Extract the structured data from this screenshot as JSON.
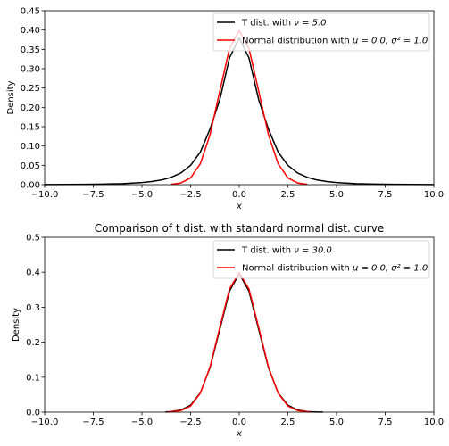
{
  "chart_data": [
    {
      "type": "line",
      "title": "",
      "xlabel": "x",
      "ylabel": "Density",
      "xlim": [
        -10,
        10
      ],
      "ylim": [
        0,
        0.45
      ],
      "x_ticks": [
        "−10.0",
        "−7.5",
        "−5.0",
        "−2.5",
        "0.0",
        "2.5",
        "5.0",
        "7.5",
        "10.0"
      ],
      "y_ticks": [
        "0.00",
        "0.05",
        "0.10",
        "0.15",
        "0.20",
        "0.25",
        "0.30",
        "0.35",
        "0.40",
        "0.45"
      ],
      "legend_position": "top-right",
      "legend": [
        {
          "prefix": "T dist. with ",
          "math": "ν = 5.0",
          "color": "#000000"
        },
        {
          "prefix": "Normal distribution with ",
          "math": "μ = 0.0, σ² = 1.0",
          "color": "#ff0000"
        }
      ],
      "series": [
        {
          "color": "#000000",
          "x": [
            -10,
            -9,
            -8,
            -7,
            -6,
            -5,
            -4.5,
            -4,
            -3.5,
            -3,
            -2.5,
            -2,
            -1.5,
            -1,
            -0.5,
            0,
            0.5,
            1,
            1.5,
            2,
            2.5,
            3,
            3.5,
            4,
            4.5,
            5,
            6,
            7,
            8,
            9,
            10
          ],
          "y": [
            0.0004,
            0.0006,
            0.0009,
            0.0015,
            0.0027,
            0.0054,
            0.008,
            0.012,
            0.0188,
            0.0302,
            0.0497,
            0.0844,
            0.144,
            0.2197,
            0.3279,
            0.3796,
            0.3279,
            0.2197,
            0.144,
            0.0844,
            0.0497,
            0.0302,
            0.0188,
            0.012,
            0.008,
            0.0054,
            0.0027,
            0.0015,
            0.0009,
            0.0006,
            0.0004
          ]
        },
        {
          "color": "#ff0000",
          "x": [
            -3.5,
            -3,
            -2.5,
            -2,
            -1.5,
            -1,
            -0.5,
            0,
            0.5,
            1,
            1.5,
            2,
            2.5,
            3,
            3.5
          ],
          "y": [
            0.0009,
            0.0044,
            0.0175,
            0.054,
            0.1295,
            0.242,
            0.3521,
            0.3989,
            0.3521,
            0.242,
            0.1295,
            0.054,
            0.0175,
            0.0044,
            0.0009
          ]
        }
      ]
    },
    {
      "type": "line",
      "title": "Comparison of t dist. with standard normal dist. curve",
      "xlabel": "x",
      "ylabel": "Density",
      "xlim": [
        -10,
        10
      ],
      "ylim": [
        0,
        0.5
      ],
      "x_ticks": [
        "−10.0",
        "−7.5",
        "−5.0",
        "−2.5",
        "0.0",
        "2.5",
        "5.0",
        "7.5",
        "10.0"
      ],
      "y_ticks": [
        "0.0",
        "0.1",
        "0.2",
        "0.3",
        "0.4",
        "0.5"
      ],
      "legend_position": "top-right",
      "legend": [
        {
          "prefix": "T dist. with ",
          "math": "ν = 30.0",
          "color": "#000000"
        },
        {
          "prefix": "Normal distribution with ",
          "math": "μ = 0.0, σ² = 1.0",
          "color": "#ff0000"
        }
      ],
      "series": [
        {
          "color": "#000000",
          "x": [
            -3.8,
            -3.5,
            -3,
            -2.5,
            -2,
            -1.5,
            -1,
            -0.5,
            0,
            0.5,
            1,
            1.5,
            2,
            2.5,
            3,
            3.5,
            4,
            4.3
          ],
          "y": [
            0.0008,
            0.0016,
            0.0061,
            0.0199,
            0.0549,
            0.1275,
            0.236,
            0.3459,
            0.3956,
            0.3459,
            0.236,
            0.1275,
            0.0549,
            0.0199,
            0.0061,
            0.0016,
            0.0004,
            0.0002
          ]
        },
        {
          "color": "#ff0000",
          "x": [
            -3.7,
            -3.5,
            -3,
            -2.5,
            -2,
            -1.5,
            -1,
            -0.5,
            0,
            0.5,
            1,
            1.5,
            2,
            2.5,
            3,
            3.5,
            3.7
          ],
          "y": [
            0.0004,
            0.0009,
            0.0044,
            0.0175,
            0.054,
            0.1295,
            0.242,
            0.3521,
            0.3989,
            0.3521,
            0.242,
            0.1295,
            0.054,
            0.0175,
            0.0044,
            0.0009,
            0.0004
          ]
        }
      ]
    }
  ]
}
